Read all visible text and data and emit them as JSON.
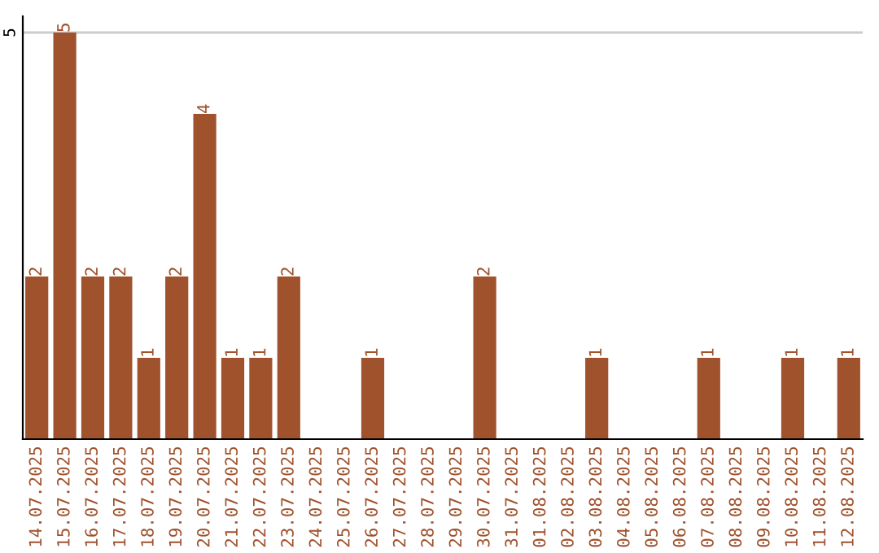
{
  "chart_data": {
    "type": "bar",
    "categories": [
      "14.07.2025",
      "15.07.2025",
      "16.07.2025",
      "17.07.2025",
      "18.07.2025",
      "19.07.2025",
      "20.07.2025",
      "21.07.2025",
      "22.07.2025",
      "23.07.2025",
      "24.07.2025",
      "25.07.2025",
      "26.07.2025",
      "27.07.2025",
      "28.07.2025",
      "29.07.2025",
      "30.07.2025",
      "31.07.2025",
      "01.08.2025",
      "02.08.2025",
      "03.08.2025",
      "04.08.2025",
      "05.08.2025",
      "06.08.2025",
      "07.08.2025",
      "08.08.2025",
      "09.08.2025",
      "10.08.2025",
      "11.08.2025",
      "12.08.2025"
    ],
    "values": [
      2,
      5,
      2,
      2,
      1,
      2,
      4,
      1,
      1,
      2,
      0,
      0,
      1,
      0,
      0,
      0,
      2,
      0,
      0,
      0,
      1,
      0,
      0,
      0,
      1,
      0,
      0,
      1,
      0,
      1
    ],
    "value_labels": [
      "2",
      "5",
      "2",
      "2",
      "1",
      "2",
      "4",
      "1",
      "1",
      "2",
      null,
      null,
      "1",
      null,
      null,
      null,
      "2",
      null,
      null,
      null,
      "1",
      null,
      null,
      null,
      "1",
      null,
      null,
      "1",
      null,
      "1"
    ],
    "color": "#a0522d",
    "ylim": [
      0,
      5.2
    ],
    "yticks": [
      5
    ],
    "grid": "y",
    "legend": false
  }
}
